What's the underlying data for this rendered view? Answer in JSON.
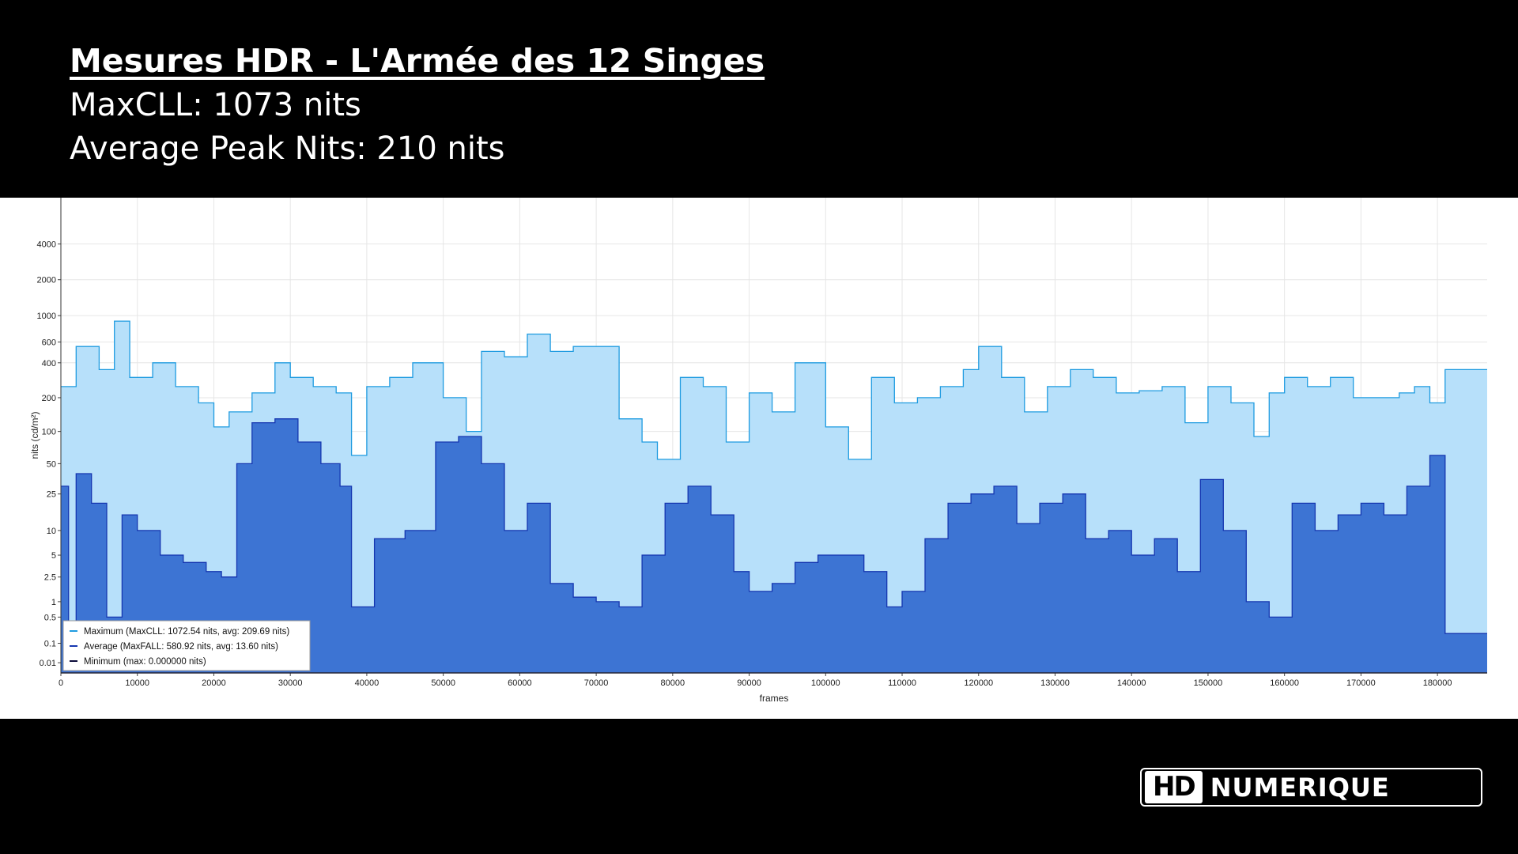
{
  "header": {
    "title": "Mesures HDR - L'Armée des 12 Singes",
    "maxcll_line": "MaxCLL: 1073 nits",
    "avg_peak_line": "Average Peak Nits: 210 nits"
  },
  "logo": {
    "hd": "HD",
    "name": "NUMERIQUE"
  },
  "chart_data": {
    "type": "area",
    "xlabel": "frames",
    "ylabel": "nits (cd/m²)",
    "y_scale": "perceptual (PQ-like)",
    "xlim": [
      0,
      186500
    ],
    "x_ticks": [
      0,
      10000,
      20000,
      30000,
      40000,
      50000,
      60000,
      70000,
      80000,
      90000,
      100000,
      110000,
      120000,
      130000,
      140000,
      150000,
      160000,
      170000,
      180000
    ],
    "y_ticks": [
      0.01,
      0.1,
      0.5,
      1,
      2.5,
      5,
      10,
      25,
      50,
      100,
      200,
      400,
      600,
      1000,
      2000,
      4000
    ],
    "y_tick_labels": [
      "0.01",
      "0.1",
      "0.5",
      "1",
      "2.5",
      "5",
      "10",
      "25",
      "50",
      "100",
      "200",
      "400",
      "600",
      "1000",
      "2000",
      "4000"
    ],
    "grid": true,
    "legend_position": "bottom-left",
    "colors": {
      "maximum_fill": "#b7e0fa",
      "maximum_line": "#1e9be0",
      "average_fill": "#3d74d3",
      "average_line": "#1536b0",
      "minimum_line": "#0b0b3a"
    },
    "series": [
      {
        "name": "Maximum",
        "legend": "Maximum (MaxCLL: 1072.54 nits, avg: 209.69 nits)",
        "x": [
          0,
          2000,
          5000,
          7000,
          9000,
          12000,
          15000,
          18000,
          20000,
          22000,
          25000,
          28000,
          30000,
          33000,
          36000,
          38000,
          40000,
          43000,
          46000,
          50000,
          53000,
          55000,
          58000,
          61000,
          64000,
          67000,
          70000,
          73000,
          76000,
          78000,
          81000,
          84000,
          87000,
          90000,
          93000,
          96000,
          100000,
          103000,
          106000,
          109000,
          112000,
          115000,
          118000,
          120000,
          123000,
          126000,
          129000,
          132000,
          135000,
          138000,
          141000,
          144000,
          147000,
          150000,
          153000,
          156000,
          158000,
          160000,
          163000,
          166000,
          169000,
          172000,
          175000,
          177000,
          179000,
          181000,
          186500
        ],
        "y": [
          250,
          550,
          350,
          900,
          300,
          400,
          250,
          180,
          110,
          150,
          220,
          400,
          300,
          250,
          220,
          60,
          250,
          300,
          400,
          200,
          100,
          500,
          450,
          700,
          500,
          550,
          550,
          130,
          80,
          55,
          300,
          250,
          80,
          220,
          150,
          400,
          110,
          55,
          300,
          180,
          200,
          250,
          350,
          550,
          300,
          150,
          250,
          350,
          300,
          220,
          230,
          250,
          120,
          250,
          180,
          90,
          220,
          300,
          250,
          300,
          200,
          200,
          220,
          250,
          180,
          350,
          350
        ]
      },
      {
        "name": "Average",
        "legend": "Average (MaxFALL: 580.92 nits, avg: 13.60 nits)",
        "x": [
          0,
          1000,
          2000,
          4000,
          6000,
          8000,
          10000,
          13000,
          16000,
          19000,
          21000,
          23000,
          25000,
          28000,
          31000,
          34000,
          36500,
          38000,
          41000,
          45000,
          49000,
          52000,
          55000,
          58000,
          61000,
          64000,
          67000,
          70000,
          73000,
          76000,
          79000,
          82000,
          85000,
          88000,
          90000,
          93000,
          96000,
          99000,
          102000,
          105000,
          108000,
          110000,
          113000,
          116000,
          119000,
          122000,
          125000,
          128000,
          131000,
          134000,
          137000,
          140000,
          143000,
          146000,
          149000,
          152000,
          155000,
          158000,
          161000,
          164000,
          167000,
          170000,
          173000,
          176000,
          179000,
          181000,
          186500
        ],
        "y": [
          30,
          0.3,
          40,
          20,
          0.5,
          15,
          10,
          5,
          4,
          3,
          2.5,
          50,
          120,
          130,
          80,
          50,
          30,
          0.8,
          8,
          10,
          80,
          90,
          50,
          10,
          20,
          2,
          1.2,
          1,
          0.8,
          5,
          20,
          30,
          15,
          3,
          1.5,
          2,
          4,
          5,
          5,
          3,
          0.8,
          1.5,
          8,
          20,
          25,
          30,
          12,
          20,
          25,
          8,
          10,
          5,
          8,
          3,
          35,
          10,
          1,
          0.5,
          20,
          10,
          15,
          20,
          15,
          30,
          60,
          0.2,
          0.2
        ]
      },
      {
        "name": "Minimum",
        "legend": "Minimum (max: 0.000000 nits)",
        "x": [
          0,
          186500
        ],
        "y": [
          0,
          0
        ]
      }
    ]
  }
}
